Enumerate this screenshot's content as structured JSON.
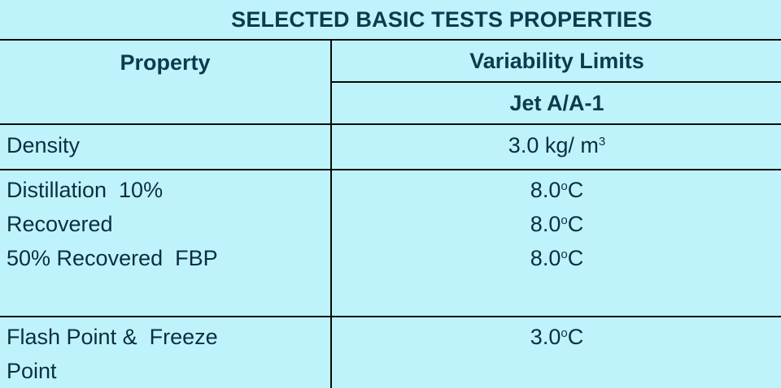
{
  "title": "SELECTED BASIC TESTS PROPERTIES",
  "header": {
    "property": "Property",
    "variability_limits": "Variability Limits",
    "fuel": "Jet A/A-1"
  },
  "rows": [
    {
      "label_lines": [
        "Density"
      ],
      "value_lines": [
        {
          "text": "3.0 kg/ m",
          "sup": "3",
          "unit": ""
        }
      ]
    },
    {
      "label_lines": [
        "Distillation  10%",
        "Recovered",
        "50% Recovered  FBP"
      ],
      "value_lines": [
        {
          "text": "8.0",
          "sup": "o",
          "unit": "C"
        },
        {
          "text": "8.0",
          "sup": "o",
          "unit": "C"
        },
        {
          "text": "8.0",
          "sup": "o",
          "unit": "C"
        }
      ]
    },
    {
      "label_lines": [
        "Flash Point &  Freeze",
        "Point"
      ],
      "value_lines": [
        {
          "text": "3.0",
          "sup": "o",
          "unit": "C"
        }
      ]
    }
  ]
}
